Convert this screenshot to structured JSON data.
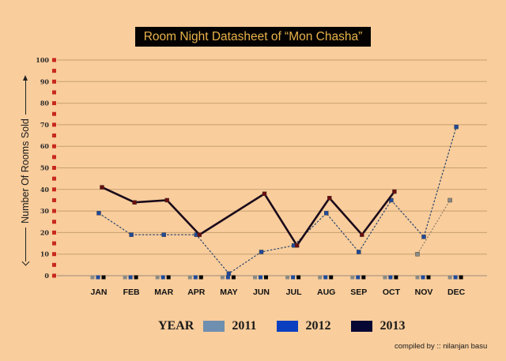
{
  "title": "Room Night Datasheet of “Mon Chasha”",
  "y_axis_label": "Number Of Rooms Sold",
  "credit": "compiled by :: nilanjan basu",
  "legend": {
    "title": "YEAR",
    "items": [
      {
        "label": "2011",
        "color": "#6F8FB0"
      },
      {
        "label": "2012",
        "color": "#0A3FC0"
      },
      {
        "label": "2013",
        "color": "#060733"
      }
    ]
  },
  "colors": {
    "background": "#F9CD9C",
    "gridline": "#C8A070",
    "tick_marker": "#C8281E",
    "title_bg": "#050302",
    "title_text": "#E8B24A",
    "line_2013": "#1A0A1A",
    "marker_2013": "#6A0D0D",
    "line_2012": "#27456E",
    "marker_2012": "#1F4A9A",
    "line_2011": "#7A7060",
    "marker_2011": "#8A8A84"
  },
  "chart_data": {
    "type": "line",
    "title": "Room Night Datasheet of “Mon Chasha”",
    "xlabel": "",
    "ylabel": "Number Of Rooms Sold",
    "categories": [
      "JAN",
      "FEB",
      "MAR",
      "APR",
      "MAY",
      "JUN",
      "JUL",
      "AUG",
      "SEP",
      "OCT",
      "NOV",
      "DEC"
    ],
    "yticks": [
      0,
      10,
      20,
      30,
      40,
      50,
      60,
      70,
      80,
      90,
      100
    ],
    "ylim": [
      0,
      100
    ],
    "grid": true,
    "legend_position": "bottom",
    "series": [
      {
        "name": "2011",
        "values": [
          null,
          null,
          null,
          null,
          null,
          null,
          null,
          null,
          null,
          null,
          10,
          35
        ]
      },
      {
        "name": "2012",
        "values": [
          29,
          19,
          19,
          19,
          1,
          11,
          14,
          29,
          11,
          35,
          18,
          69
        ]
      },
      {
        "name": "2013",
        "values": [
          41,
          34,
          35,
          19,
          null,
          38,
          14,
          36,
          19,
          39,
          null,
          null
        ]
      }
    ]
  }
}
